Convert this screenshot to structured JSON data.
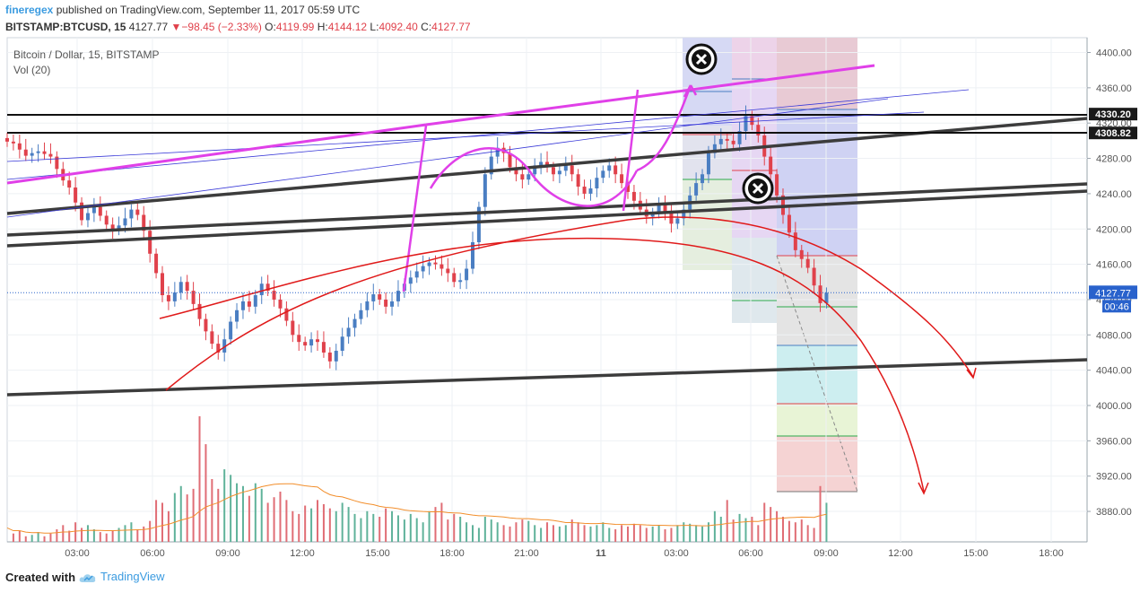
{
  "header": {
    "author": "fineregex",
    "published": "published on TradingView.com, September 11, 2017 05:59 UTC",
    "symbol": "BITSTAMP:BTCUSD, 15",
    "last": "4127.77",
    "change": "−98.45 (−2.33%)",
    "o_label": "O:",
    "o_value": "4119.99",
    "h_label": "H:",
    "h_value": "4144.12",
    "l_label": "L:",
    "l_value": "4092.40",
    "c_label": "C:",
    "c_value": "4127.77"
  },
  "legend": {
    "series_title": "Bitcoin / Dollar, 15, BITSTAMP",
    "volume_title": "Vol (20)"
  },
  "footer": {
    "created_with": "Created with",
    "brand": "TradingView"
  },
  "colors": {
    "up": "#4a7ec2",
    "down": "#e0414b",
    "pink": "#e040e8",
    "red": "#e01a1a",
    "trend": "#333333",
    "channel": "#3a3ad8",
    "last_price": "#2962cc"
  },
  "chart_data": {
    "type": "candlestick",
    "title": "Bitcoin / Dollar, 15, BITSTAMP",
    "x_tick_labels": [
      "03:00",
      "06:00",
      "09:00",
      "12:00",
      "15:00",
      "18:00",
      "21:00",
      "11",
      "03:00",
      "06:00",
      "09:00",
      "12:00",
      "15:00",
      "18:00"
    ],
    "y_tick_labels": [
      "4400.00",
      "4360.00",
      "4320.00",
      "4280.00",
      "4240.00",
      "4200.00",
      "4160.00",
      "4120.00",
      "4080.00",
      "4040.00",
      "4000.00",
      "3960.00",
      "3920.00",
      "3880.00"
    ],
    "ylim": [
      3848,
      4418
    ],
    "price_labels": [
      {
        "value": 4330.2,
        "text": "4330.20"
      },
      {
        "value": 4308.82,
        "text": "4308.82"
      }
    ],
    "last_price": {
      "value": 4127.77,
      "text": "4127.77",
      "countdown": "00:46"
    },
    "bars_per_3h": 12,
    "close_series": [
      4299,
      4297,
      4290,
      4283,
      4286,
      4288,
      4285,
      4282,
      4268,
      4255,
      4247,
      4230,
      4210,
      4218,
      4225,
      4215,
      4205,
      4199,
      4204,
      4212,
      4222,
      4216,
      4198,
      4172,
      4150,
      4125,
      4118,
      4128,
      4140,
      4130,
      4115,
      4098,
      4084,
      4070,
      4060,
      4075,
      4095,
      4108,
      4118,
      4112,
      4125,
      4138,
      4130,
      4120,
      4110,
      4096,
      4080,
      4072,
      4068,
      4075,
      4072,
      4060,
      4050,
      4062,
      4078,
      4088,
      4098,
      4108,
      4118,
      4126,
      4120,
      4112,
      4118,
      4130,
      4138,
      4145,
      4152,
      4158,
      4162,
      4160,
      4155,
      4150,
      4140,
      4142,
      4155,
      4185,
      4225,
      4262,
      4282,
      4292,
      4286,
      4270,
      4262,
      4256,
      4262,
      4272,
      4276,
      4270,
      4262,
      4266,
      4272,
      4262,
      4248,
      4240,
      4246,
      4258,
      4266,
      4272,
      4262,
      4252,
      4242,
      4232,
      4222,
      4214,
      4218,
      4228,
      4218,
      4206,
      4212,
      4222,
      4238,
      4252,
      4262,
      4286,
      4296,
      4302,
      4300,
      4296,
      4311,
      4328,
      4318,
      4306,
      4282,
      4262,
      4238,
      4216,
      4196,
      4176,
      4166,
      4156,
      4136,
      4116,
      4127.77
    ],
    "volume_series": [
      10,
      6,
      8,
      4,
      5,
      7,
      4,
      6,
      9,
      12,
      8,
      14,
      10,
      12,
      9,
      7,
      6,
      8,
      10,
      12,
      14,
      9,
      11,
      15,
      30,
      28,
      22,
      35,
      40,
      34,
      38,
      90,
      70,
      45,
      38,
      52,
      48,
      42,
      40,
      33,
      42,
      38,
      28,
      32,
      36,
      30,
      22,
      20,
      26,
      24,
      30,
      27,
      24,
      22,
      28,
      25,
      20,
      17,
      22,
      20,
      18,
      24,
      22,
      19,
      16,
      20,
      17,
      14,
      22,
      25,
      28,
      16,
      20,
      18,
      14,
      12,
      10,
      18,
      16,
      14,
      12,
      11,
      14,
      16,
      15,
      12,
      10,
      14,
      12,
      11,
      12,
      16,
      14,
      12,
      11,
      12,
      14,
      10,
      9,
      12,
      11,
      13,
      12,
      10,
      11,
      12,
      9,
      10,
      12,
      14,
      13,
      12,
      11,
      14,
      22,
      18,
      30,
      16,
      20,
      17,
      18,
      12,
      28,
      25,
      22,
      18,
      15,
      14,
      16,
      12,
      10,
      40,
      28
    ]
  }
}
